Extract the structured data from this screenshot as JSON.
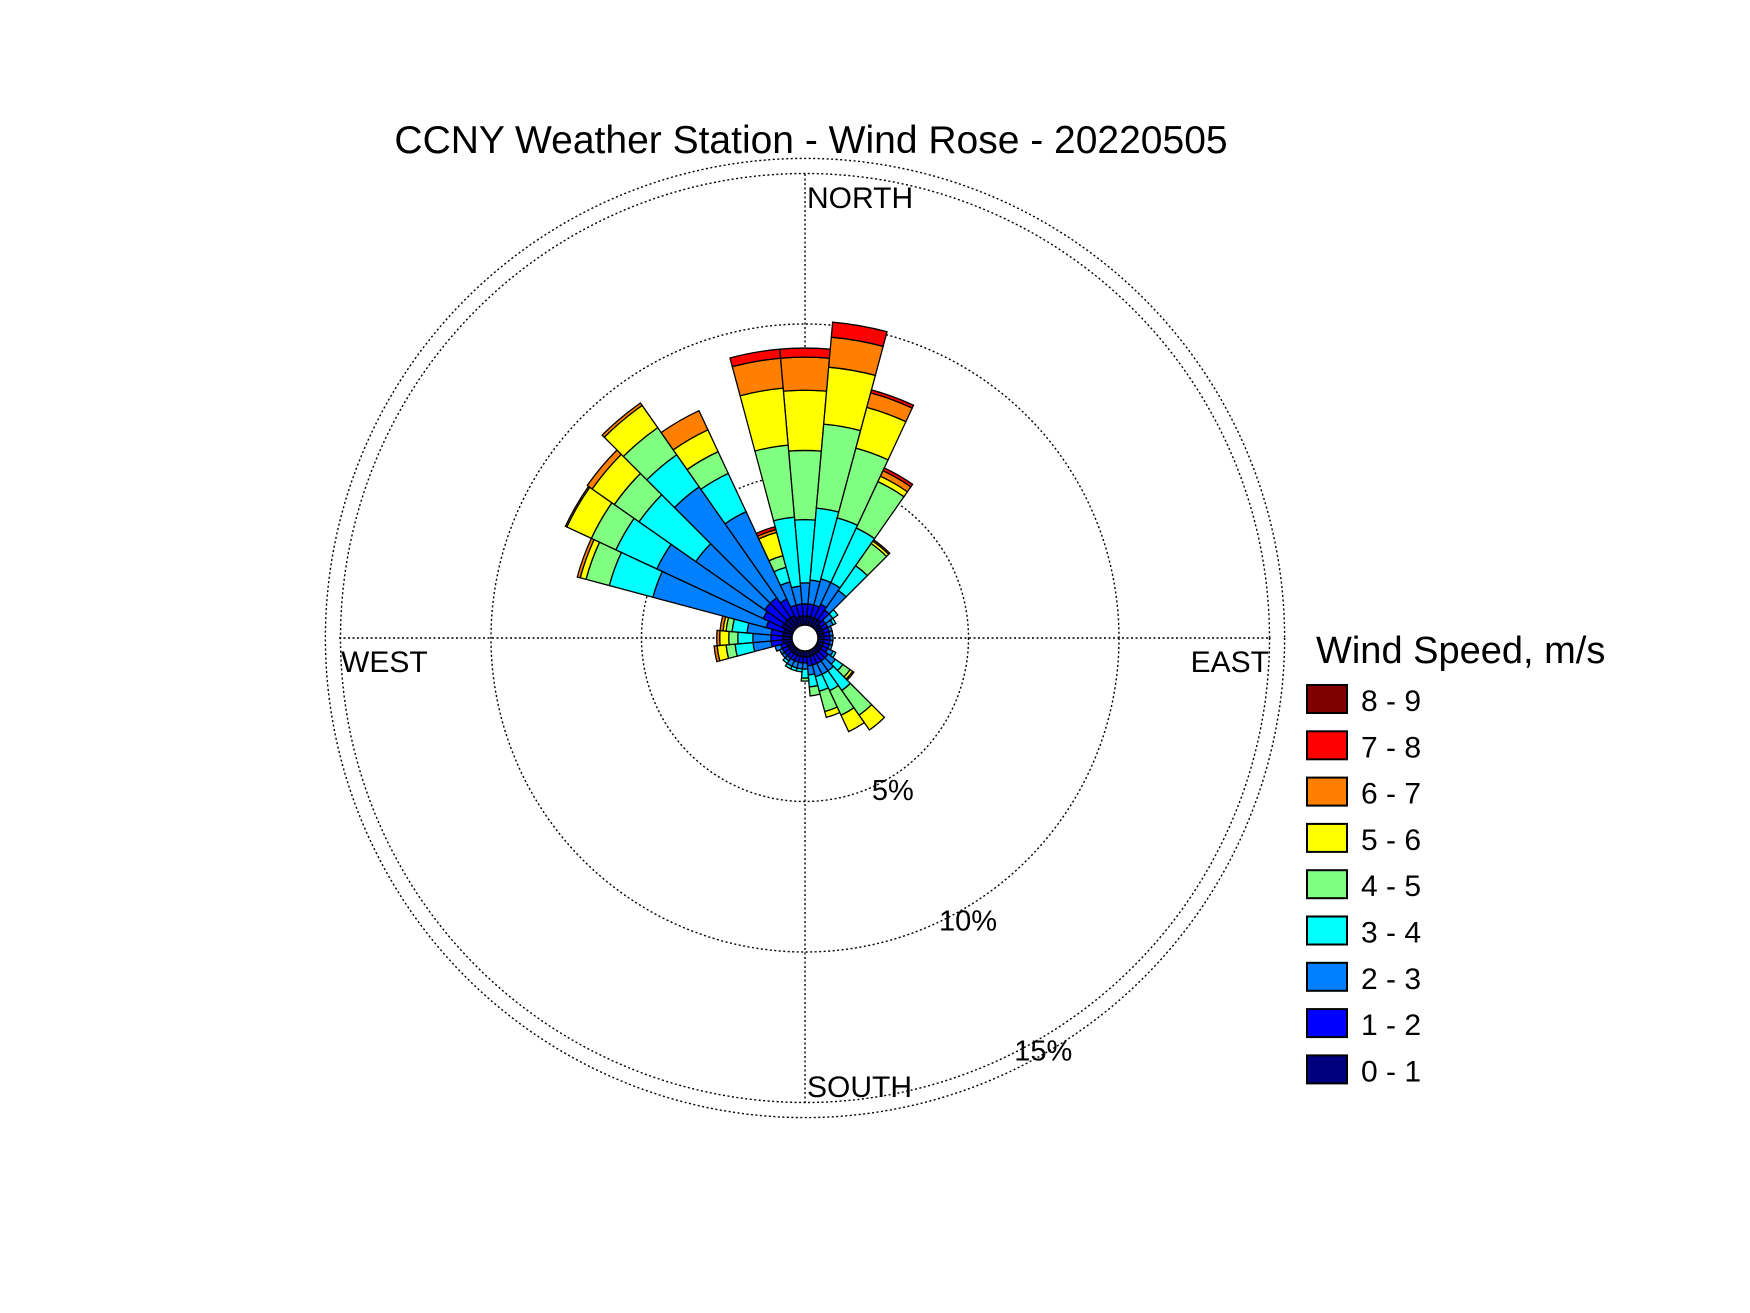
{
  "chart_data": {
    "type": "windrose",
    "title": "CCNY Weather Station - Wind Rose - 20220505",
    "direction_labels": {
      "north": "NORTH",
      "east": "EAST",
      "south": "SOUTH",
      "west": "WEST"
    },
    "radial_ticks": [
      {
        "value": 5,
        "label": "5%"
      },
      {
        "value": 10,
        "label": "10%"
      },
      {
        "value": 15,
        "label": "15%"
      }
    ],
    "rmax": 15.5,
    "legend_title": "Wind Speed, m/s",
    "legend_placement": "right",
    "speed_bins": [
      {
        "label": "0 - 1",
        "color": "#00007f"
      },
      {
        "label": "1 - 2",
        "color": "#0000ff"
      },
      {
        "label": "2 - 3",
        "color": "#0080ff"
      },
      {
        "label": "3 - 4",
        "color": "#00ffff"
      },
      {
        "label": "4 - 5",
        "color": "#80ff80"
      },
      {
        "label": "5 - 6",
        "color": "#ffff00"
      },
      {
        "label": "6 - 7",
        "color": "#ff8000"
      },
      {
        "label": "7 - 8",
        "color": "#ff0000"
      },
      {
        "label": "8 - 9",
        "color": "#800000"
      }
    ],
    "sector_width_deg": 10,
    "sectors": [
      {
        "direction_deg": 0,
        "values": [
          0.3,
          0.4,
          0.7,
          2.1,
          2.3,
          2.0,
          1.1,
          0.3,
          0
        ]
      },
      {
        "direction_deg": 10,
        "values": [
          0.3,
          0.4,
          0.8,
          2.4,
          2.8,
          1.9,
          1.0,
          0.5,
          0
        ]
      },
      {
        "direction_deg": 20,
        "values": [
          0.3,
          0.4,
          0.9,
          2.1,
          2.4,
          1.4,
          0.5,
          0.1,
          0
        ]
      },
      {
        "direction_deg": 30,
        "values": [
          0.3,
          0.5,
          0.8,
          2.0,
          1.7,
          0.2,
          0.2,
          0.1,
          0
        ]
      },
      {
        "direction_deg": 40,
        "values": [
          0.3,
          0.4,
          0.8,
          1.0,
          0.9,
          0.1,
          0.05,
          0,
          0
        ]
      },
      {
        "direction_deg": 50,
        "values": [
          0.2,
          0.2,
          0.3,
          0.2,
          0,
          0,
          0,
          0,
          0
        ]
      },
      {
        "direction_deg": 60,
        "values": [
          0.2,
          0.2,
          0.2,
          0.1,
          0,
          0,
          0,
          0,
          0
        ]
      },
      {
        "direction_deg": 70,
        "values": [
          0.2,
          0.2,
          0.1,
          0,
          0,
          0,
          0,
          0,
          0
        ]
      },
      {
        "direction_deg": 80,
        "values": [
          0.2,
          0.2,
          0.1,
          0,
          0,
          0,
          0,
          0,
          0
        ]
      },
      {
        "direction_deg": 90,
        "values": [
          0.2,
          0.2,
          0.1,
          0,
          0,
          0,
          0,
          0,
          0
        ]
      },
      {
        "direction_deg": 100,
        "values": [
          0.2,
          0.2,
          0.1,
          0,
          0,
          0,
          0,
          0,
          0
        ]
      },
      {
        "direction_deg": 110,
        "values": [
          0.2,
          0.2,
          0.1,
          0,
          0,
          0,
          0,
          0,
          0
        ]
      },
      {
        "direction_deg": 120,
        "values": [
          0.2,
          0.2,
          0.2,
          0.1,
          0,
          0,
          0,
          0,
          0
        ]
      },
      {
        "direction_deg": 130,
        "values": [
          0.2,
          0.3,
          0.3,
          0.3,
          0.3,
          0.1,
          0.05,
          0,
          0
        ]
      },
      {
        "direction_deg": 140,
        "values": [
          0.2,
          0.3,
          0.4,
          0.8,
          1.0,
          0.6,
          0,
          0,
          0
        ]
      },
      {
        "direction_deg": 150,
        "values": [
          0.2,
          0.3,
          0.4,
          0.6,
          0.9,
          0.6,
          0,
          0,
          0
        ]
      },
      {
        "direction_deg": 160,
        "values": [
          0.2,
          0.3,
          0.4,
          0.5,
          0.7,
          0.2,
          0,
          0,
          0
        ]
      },
      {
        "direction_deg": 170,
        "values": [
          0.2,
          0.3,
          0.3,
          0.4,
          0.3,
          0,
          0,
          0,
          0
        ]
      },
      {
        "direction_deg": 180,
        "values": [
          0.2,
          0.2,
          0.2,
          0.3,
          0.1,
          0,
          0,
          0,
          0
        ]
      },
      {
        "direction_deg": 190,
        "values": [
          0.2,
          0.2,
          0.2,
          0.1,
          0,
          0,
          0,
          0,
          0
        ]
      },
      {
        "direction_deg": 200,
        "values": [
          0.2,
          0.2,
          0.2,
          0.1,
          0,
          0,
          0,
          0,
          0
        ]
      },
      {
        "direction_deg": 210,
        "values": [
          0.2,
          0.2,
          0.2,
          0.1,
          0,
          0,
          0,
          0,
          0
        ]
      },
      {
        "direction_deg": 220,
        "values": [
          0.2,
          0.2,
          0.1,
          0.1,
          0,
          0,
          0,
          0,
          0
        ]
      },
      {
        "direction_deg": 230,
        "values": [
          0.2,
          0.2,
          0.1,
          0,
          0,
          0,
          0,
          0,
          0
        ]
      },
      {
        "direction_deg": 240,
        "values": [
          0.2,
          0.2,
          0.1,
          0,
          0,
          0,
          0,
          0,
          0
        ]
      },
      {
        "direction_deg": 250,
        "values": [
          0.2,
          0.2,
          0.2,
          0,
          0,
          0,
          0,
          0,
          0
        ]
      },
      {
        "direction_deg": 260,
        "values": [
          0.3,
          0.4,
          0.6,
          0.6,
          0.3,
          0.3,
          0.1,
          0,
          0
        ]
      },
      {
        "direction_deg": 270,
        "values": [
          0.3,
          0.4,
          0.6,
          0.5,
          0.3,
          0.3,
          0.1,
          0,
          0
        ]
      },
      {
        "direction_deg": 280,
        "values": [
          0.3,
          0.4,
          0.8,
          0.5,
          0.2,
          0.1,
          0.1,
          0,
          0
        ]
      },
      {
        "direction_deg": 290,
        "values": [
          0.3,
          0.6,
          3.9,
          1.5,
          0.8,
          0.2,
          0.1,
          0,
          0
        ]
      },
      {
        "direction_deg": 300,
        "values": [
          0.4,
          0.7,
          3.9,
          1.5,
          0.9,
          0.9,
          0.05,
          0,
          0
        ]
      },
      {
        "direction_deg": 310,
        "values": [
          0.4,
          0.8,
          2.8,
          2.3,
          1.0,
          0.9,
          0.2,
          0,
          0
        ]
      },
      {
        "direction_deg": 320,
        "values": [
          0.4,
          0.8,
          4.5,
          1.3,
          1.1,
          0.9,
          0.1,
          0,
          0
        ]
      },
      {
        "direction_deg": 330,
        "values": [
          0.4,
          0.6,
          3.2,
          1.4,
          0.8,
          0.8,
          0.7,
          0,
          0
        ]
      },
      {
        "direction_deg": 340,
        "values": [
          0.3,
          0.4,
          0.8,
          0.5,
          0.4,
          0.8,
          0.1,
          0.1,
          0
        ]
      },
      {
        "direction_deg": 350,
        "values": [
          0.3,
          0.4,
          0.6,
          2.3,
          2.4,
          1.9,
          1.0,
          0.3,
          0
        ]
      }
    ]
  }
}
